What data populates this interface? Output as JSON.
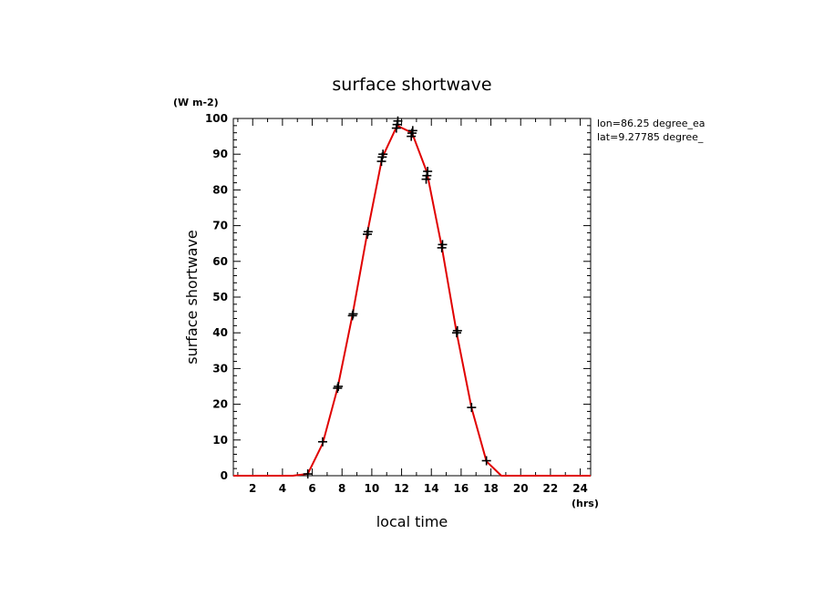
{
  "chart_data": {
    "type": "line",
    "title": "surface shortwave",
    "xlabel": "local time",
    "ylabel": "surface shortwave",
    "x_unit": "(hrs)",
    "y_unit": "(W m-2)",
    "xlim": [
      0.7,
      24.7
    ],
    "ylim": [
      0,
      100
    ],
    "x_ticks": [
      2,
      4,
      6,
      8,
      10,
      12,
      14,
      16,
      18,
      20,
      22,
      24
    ],
    "y_ticks": [
      0,
      10,
      20,
      30,
      40,
      50,
      60,
      70,
      80,
      90,
      100
    ],
    "annotations": [
      "lon=86.25 degree_ea",
      "lat=9.27785 degree_"
    ],
    "line_color": "#e00000",
    "marker_color": "#000000",
    "series": [
      {
        "x": [
          0.7,
          1.7,
          2.7,
          3.7,
          4.7,
          5.7,
          6.7,
          7.7,
          8.7,
          9.7,
          10.7,
          11.7,
          12.7,
          13.7,
          14.7,
          15.7,
          16.7,
          17.7,
          18.7,
          19.7,
          20.7,
          21.7,
          22.7,
          23.7,
          24.7
        ],
        "values": [
          0,
          0,
          0,
          0,
          0,
          0.5,
          9,
          24.5,
          45,
          68,
          89,
          98,
          96,
          85,
          64,
          40,
          19,
          4,
          0,
          0,
          0,
          0,
          0,
          0,
          0
        ]
      }
    ],
    "markers": [
      {
        "x": 5.7,
        "y": 0.5
      },
      {
        "x": 6.7,
        "y": 9.5
      },
      {
        "x": 7.7,
        "y": 24.5
      },
      {
        "x": 7.75,
        "y": 25
      },
      {
        "x": 8.7,
        "y": 44.8
      },
      {
        "x": 8.75,
        "y": 45.3
      },
      {
        "x": 9.7,
        "y": 67.6
      },
      {
        "x": 9.75,
        "y": 68.3
      },
      {
        "x": 10.65,
        "y": 88
      },
      {
        "x": 10.7,
        "y": 89.2
      },
      {
        "x": 10.75,
        "y": 90
      },
      {
        "x": 11.65,
        "y": 97.3
      },
      {
        "x": 11.7,
        "y": 98.3
      },
      {
        "x": 11.75,
        "y": 99.3
      },
      {
        "x": 12.65,
        "y": 95
      },
      {
        "x": 12.7,
        "y": 95.9
      },
      {
        "x": 12.75,
        "y": 96.6
      },
      {
        "x": 13.65,
        "y": 83
      },
      {
        "x": 13.7,
        "y": 84
      },
      {
        "x": 13.75,
        "y": 85.2
      },
      {
        "x": 14.7,
        "y": 63.8
      },
      {
        "x": 14.75,
        "y": 64.7
      },
      {
        "x": 15.7,
        "y": 40
      },
      {
        "x": 15.75,
        "y": 40.6
      },
      {
        "x": 16.7,
        "y": 19.1
      },
      {
        "x": 17.7,
        "y": 4.2
      }
    ]
  }
}
